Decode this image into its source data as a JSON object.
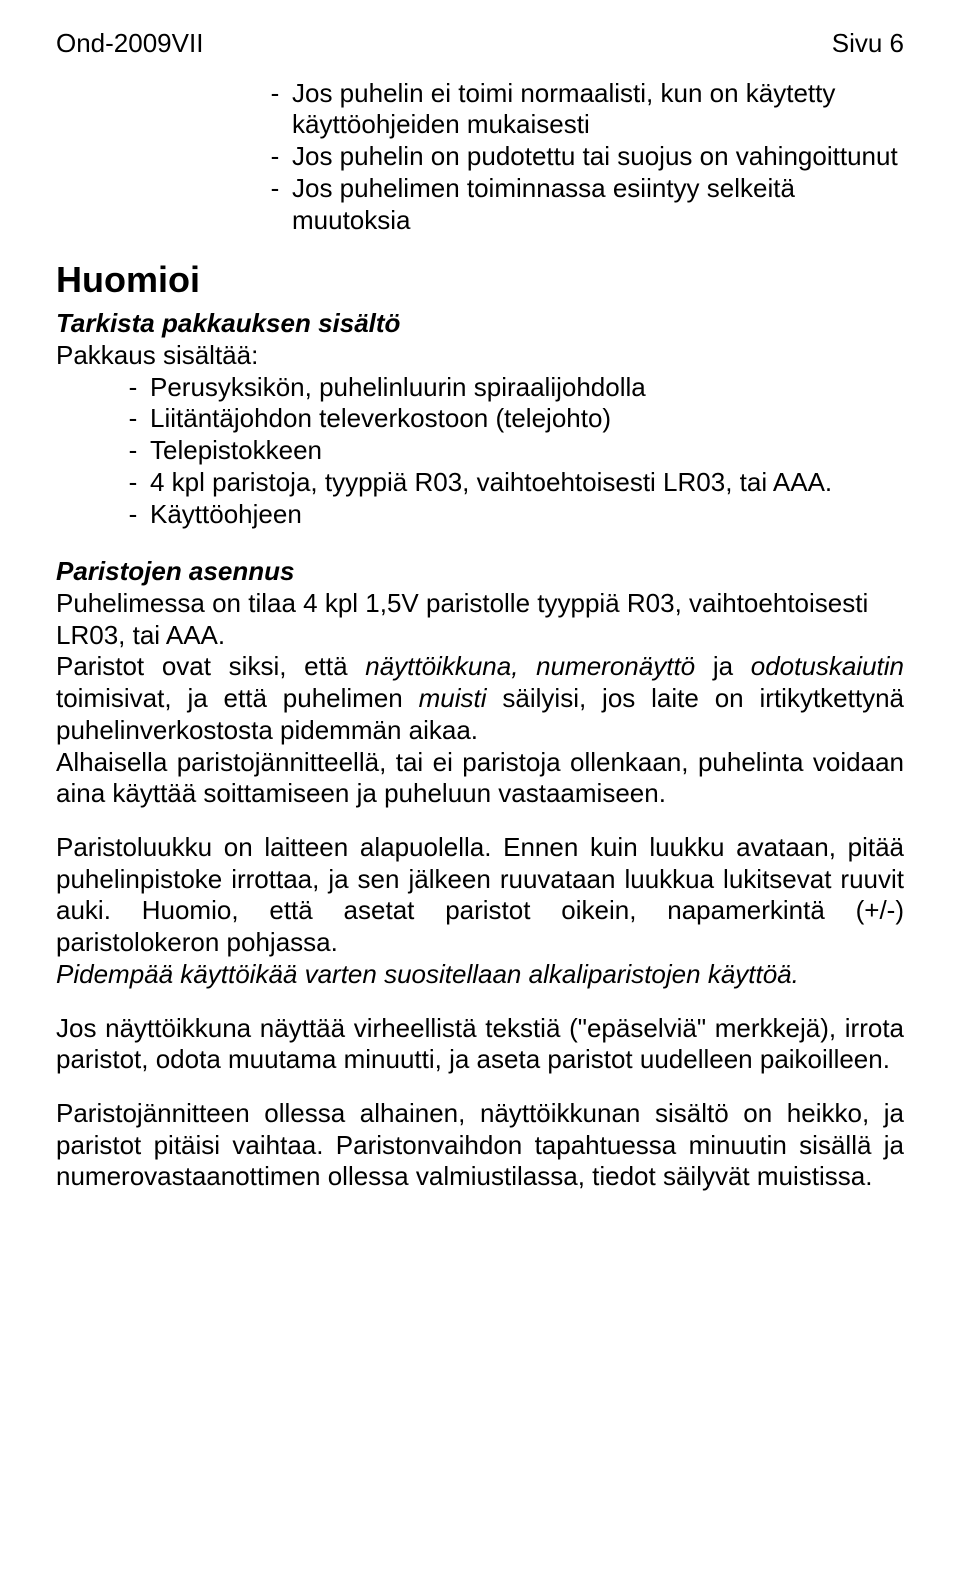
{
  "header": {
    "left": "Ond-2009VII",
    "right": "Sivu 6"
  },
  "top_list": [
    "Jos puhelin ei toimi normaalisti, kun on käytetty käyttöohjeiden mukaisesti",
    "Jos puhelin on pudotettu tai suojus on vahingoittunut",
    "Jos puhelimen toiminnassa esiintyy selkeitä muutoksia"
  ],
  "huomioi": {
    "title": "Huomioi",
    "tarkista": {
      "title": "Tarkista pakkauksen sisältö",
      "intro": "Pakkaus sisältää:",
      "items": [
        "Perusyksikön, puhelinluurin spiraalijohdolla",
        "Liitäntäjohdon televerkostoon (telejohto)",
        "Telepistokkeen",
        "4  kpl paristoja, tyyppiä R03, vaihtoehtoisesti LR03, tai AAA.",
        "Käyttöohjeen"
      ]
    },
    "paristojen": {
      "title": "Paristojen asennus",
      "p1": "Puhelimessa on tilaa 4 kpl 1,5V paristolle tyyppiä R03, vaihtoehtoisesti LR03, tai AAA.",
      "p2_a": "Paristot ovat siksi, että ",
      "p2_i1": "näyttöikkuna, numeronäyttö",
      "p2_b": " ja ",
      "p2_i2": "odotuskaiutin",
      "p2_c": " toimisivat, ja että puhelimen ",
      "p2_i3": "muisti",
      "p2_d": " säilyisi, jos laite on irtikytkettynä puhelinverkostosta pidemmän aikaa.",
      "p3": "Alhaisella paristojännitteellä, tai ei paristoja ollenkaan, puhelinta voidaan aina käyttää soittamiseen ja puheluun vastaamiseen.",
      "p4": "Paristoluukku on laitteen alapuolella. Ennen kuin luukku avataan, pitää puhelinpistoke irrottaa, ja sen jälkeen ruuvataan luukkua lukitsevat ruuvit auki. Huomio, että asetat paristot oikein, napamerkintä (+/-) paristolokeron pohjassa.",
      "p5": "Pidempää käyttöikää varten suositellaan alkaliparistojen käyttöä.",
      "p6": "Jos näyttöikkuna näyttää virheellistä tekstiä (\"epäselviä\" merkkejä), irrota paristot, odota muutama minuutti, ja aseta paristot uudelleen paikoilleen.",
      "p7": "Paristojännitteen ollessa alhainen, näyttöikkunan sisältö on heikko, ja paristot pitäisi vaihtaa. Paristonvaihdon tapahtuessa minuutin sisällä ja numerovastaanottimen ollessa valmiustilassa, tiedot säilyvät muistissa."
    }
  }
}
